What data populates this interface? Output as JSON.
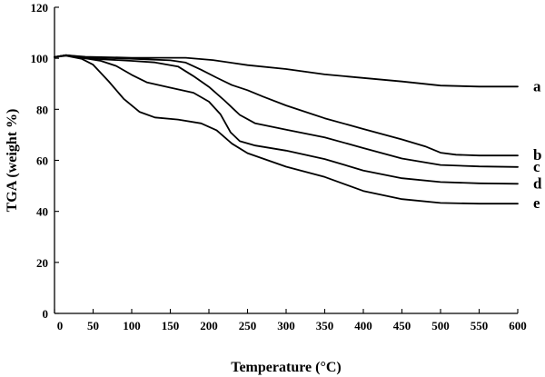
{
  "chart_data": {
    "type": "line",
    "xlabel": "Temperature (°C)",
    "ylabel": "TGA (weight %)",
    "xlim": [
      0,
      600
    ],
    "ylim": [
      0,
      120
    ],
    "x_ticks": [
      0,
      50,
      100,
      150,
      200,
      250,
      300,
      350,
      400,
      450,
      500,
      550,
      600
    ],
    "y_ticks": [
      0,
      20,
      40,
      60,
      80,
      100,
      120
    ],
    "grid": false,
    "line_color": "#000000",
    "series": [
      {
        "name": "a",
        "points": [
          [
            0,
            100.5
          ],
          [
            15,
            101.2
          ],
          [
            40,
            100.6
          ],
          [
            100,
            100.2
          ],
          [
            170,
            100.2
          ],
          [
            205,
            99.3
          ],
          [
            250,
            97.3
          ],
          [
            300,
            95.8
          ],
          [
            350,
            93.7
          ],
          [
            400,
            92.3
          ],
          [
            450,
            90.9
          ],
          [
            500,
            89.3
          ],
          [
            550,
            88.9
          ],
          [
            600,
            88.9
          ]
        ]
      },
      {
        "name": "b",
        "points": [
          [
            0,
            100.5
          ],
          [
            15,
            101.2
          ],
          [
            40,
            100.4
          ],
          [
            100,
            99.8
          ],
          [
            150,
            99.2
          ],
          [
            170,
            98.3
          ],
          [
            190,
            95.5
          ],
          [
            210,
            92.4
          ],
          [
            230,
            89.5
          ],
          [
            250,
            87.5
          ],
          [
            270,
            85.0
          ],
          [
            300,
            81.5
          ],
          [
            350,
            76.5
          ],
          [
            400,
            72.3
          ],
          [
            450,
            68.2
          ],
          [
            480,
            65.5
          ],
          [
            500,
            63.0
          ],
          [
            520,
            62.2
          ],
          [
            550,
            61.9
          ],
          [
            600,
            61.9
          ]
        ]
      },
      {
        "name": "c",
        "points": [
          [
            0,
            100.5
          ],
          [
            15,
            101.2
          ],
          [
            40,
            100.0
          ],
          [
            100,
            99.0
          ],
          [
            130,
            98.4
          ],
          [
            160,
            96.8
          ],
          [
            180,
            93.0
          ],
          [
            200,
            88.8
          ],
          [
            220,
            83.5
          ],
          [
            240,
            77.8
          ],
          [
            260,
            74.5
          ],
          [
            300,
            72.0
          ],
          [
            350,
            69.0
          ],
          [
            400,
            64.8
          ],
          [
            450,
            60.7
          ],
          [
            500,
            58.2
          ],
          [
            550,
            57.6
          ],
          [
            600,
            57.4
          ]
        ]
      },
      {
        "name": "d",
        "points": [
          [
            0,
            100.5
          ],
          [
            15,
            101.2
          ],
          [
            40,
            100.0
          ],
          [
            60,
            99.0
          ],
          [
            80,
            97.0
          ],
          [
            100,
            93.5
          ],
          [
            120,
            90.5
          ],
          [
            150,
            88.5
          ],
          [
            180,
            86.5
          ],
          [
            200,
            83.0
          ],
          [
            215,
            78.0
          ],
          [
            228,
            71.0
          ],
          [
            240,
            67.5
          ],
          [
            260,
            65.8
          ],
          [
            300,
            63.8
          ],
          [
            350,
            60.5
          ],
          [
            400,
            56.0
          ],
          [
            450,
            53.0
          ],
          [
            500,
            51.5
          ],
          [
            550,
            51.0
          ],
          [
            600,
            50.8
          ]
        ]
      },
      {
        "name": "e",
        "points": [
          [
            0,
            100.5
          ],
          [
            15,
            101.0
          ],
          [
            35,
            99.8
          ],
          [
            50,
            97.5
          ],
          [
            70,
            91.0
          ],
          [
            90,
            84.0
          ],
          [
            110,
            79.0
          ],
          [
            130,
            76.8
          ],
          [
            160,
            76.0
          ],
          [
            190,
            74.5
          ],
          [
            210,
            71.8
          ],
          [
            230,
            66.5
          ],
          [
            250,
            62.8
          ],
          [
            300,
            57.5
          ],
          [
            350,
            53.5
          ],
          [
            400,
            48.0
          ],
          [
            450,
            44.8
          ],
          [
            500,
            43.3
          ],
          [
            550,
            43.0
          ],
          [
            600,
            43.0
          ]
        ]
      }
    ]
  }
}
